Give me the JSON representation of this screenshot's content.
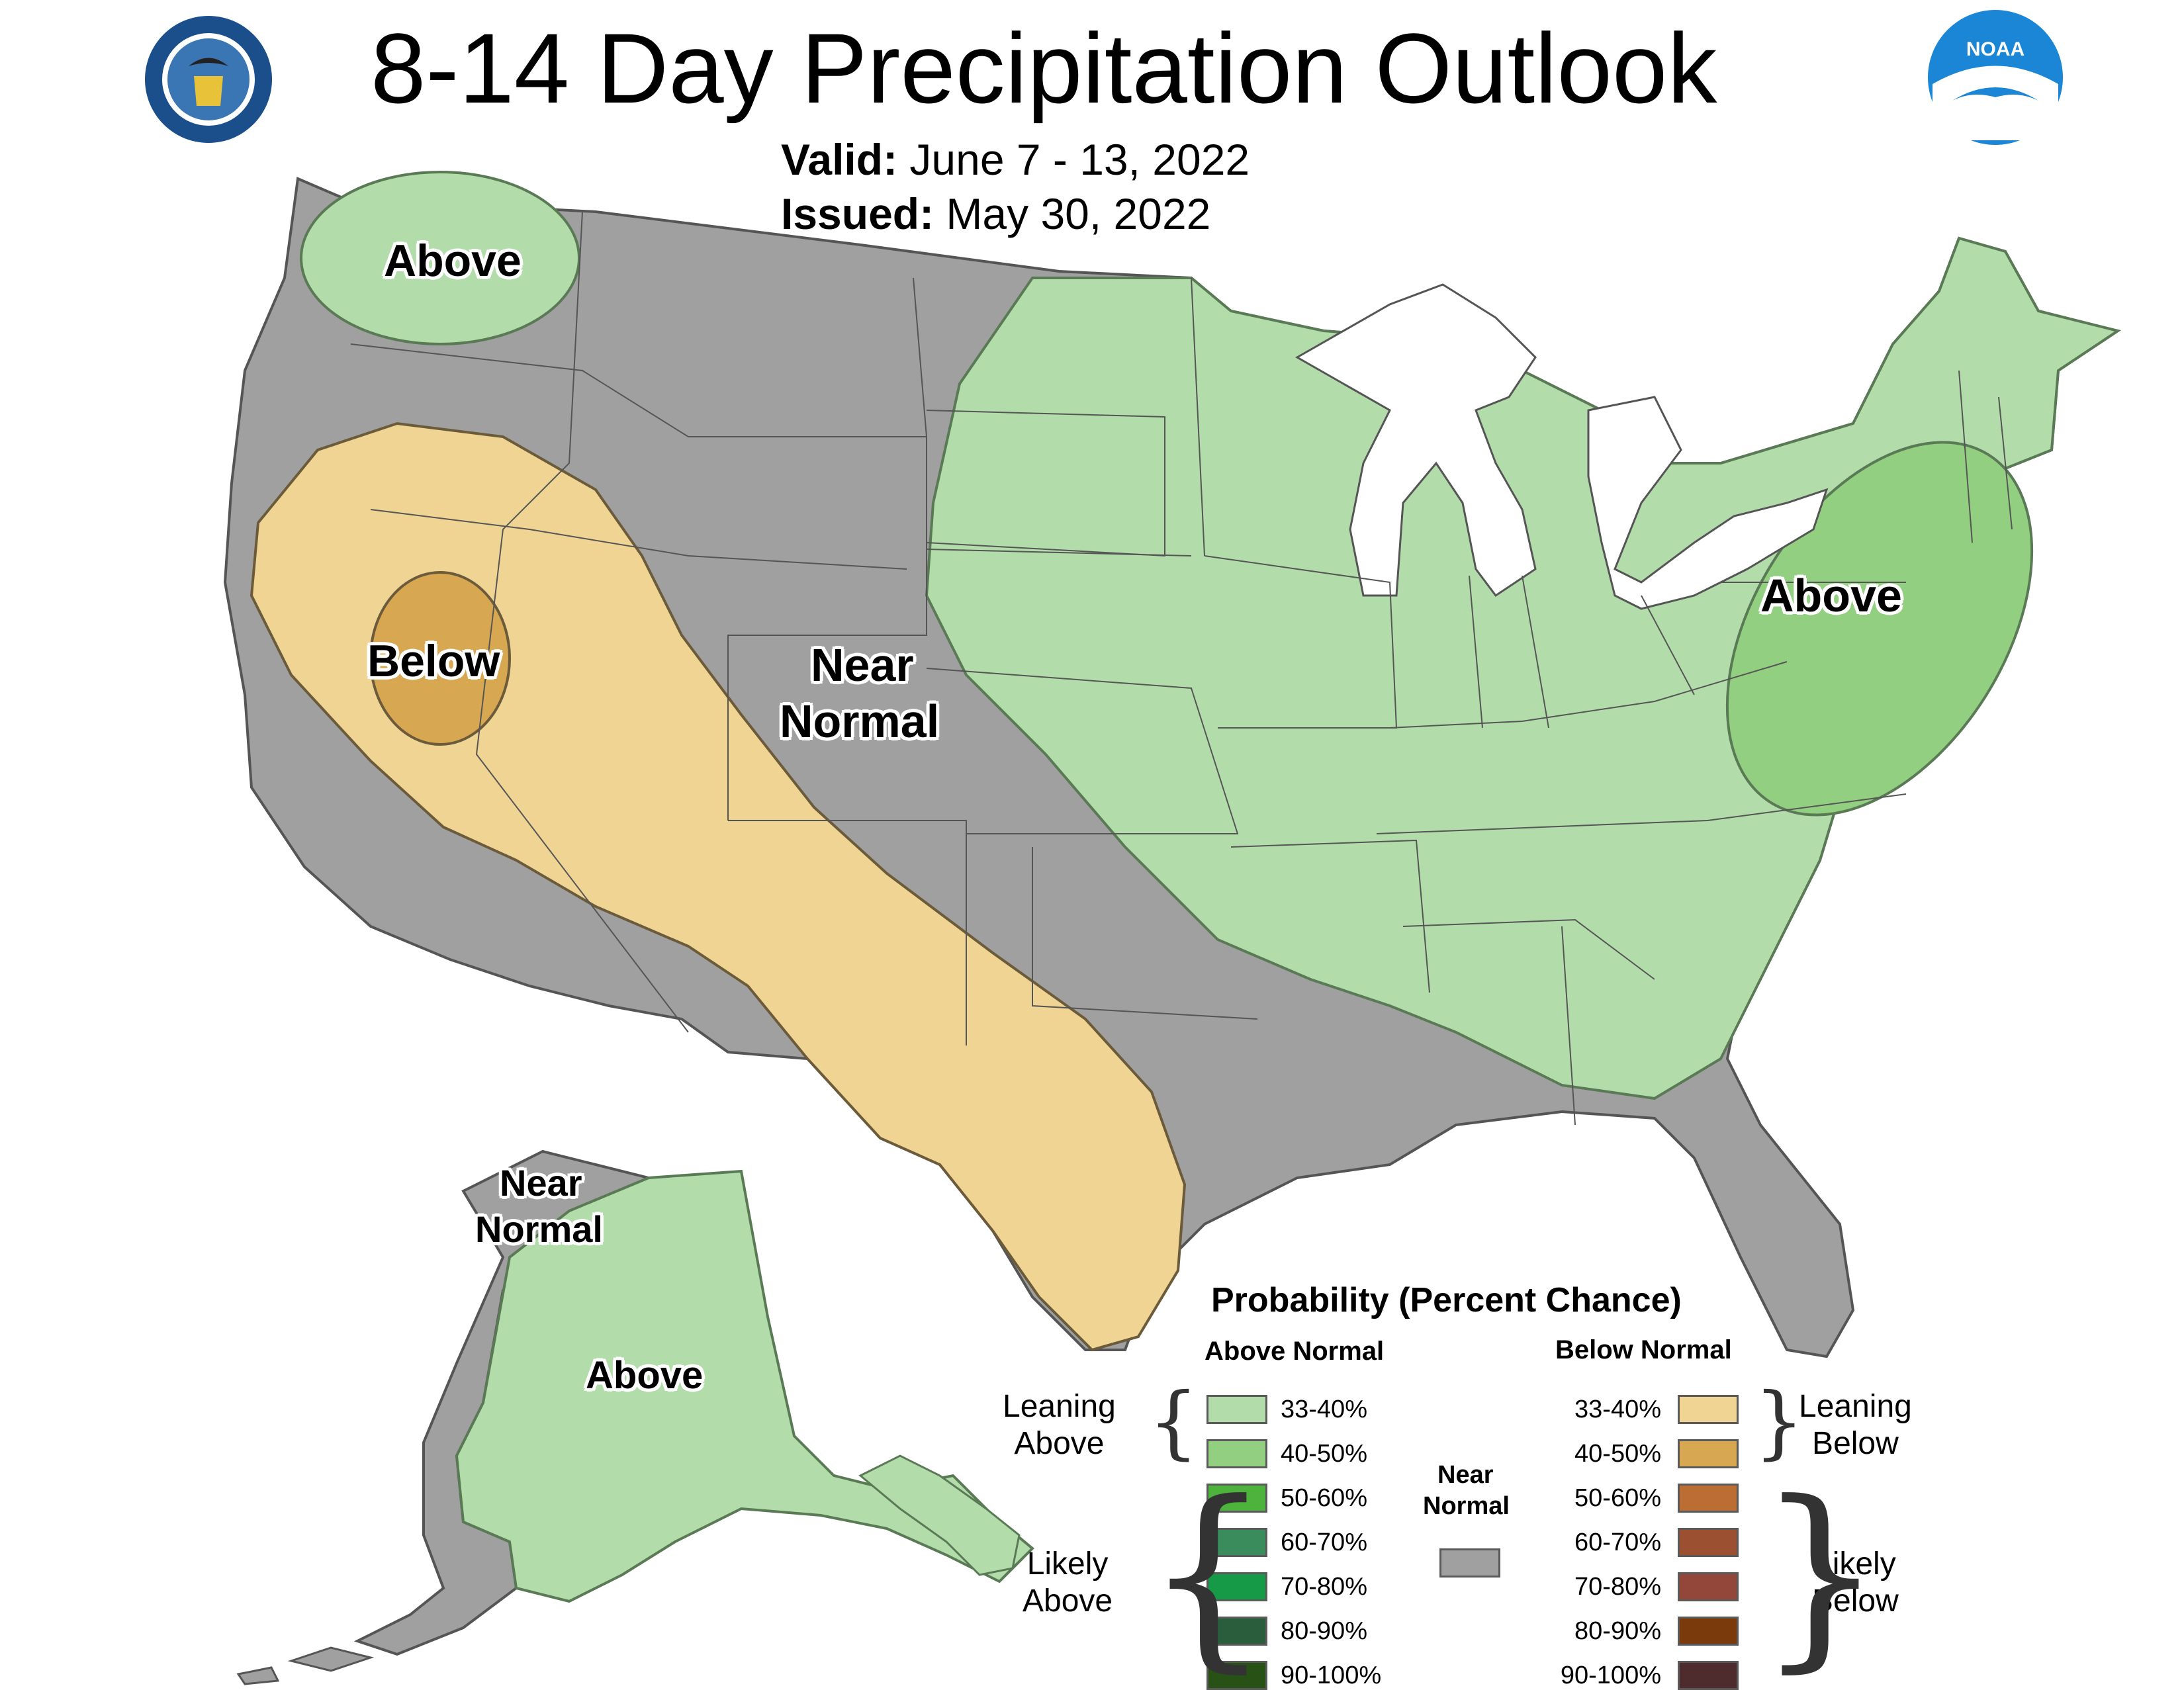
{
  "header": {
    "title": "8-14 Day Precipitation Outlook",
    "valid_label": "Valid:",
    "valid_value": "June 7 - 13, 2022",
    "issued_label": "Issued:",
    "issued_value": "May 30, 2022"
  },
  "logos": {
    "left": "department-of-commerce-seal",
    "right": "noaa-logo",
    "noaa_text": "NOAA"
  },
  "map_labels": {
    "nw_above": "Above",
    "west_below": "Below",
    "central_near": "Near",
    "central_normal": "Normal",
    "east_above": "Above",
    "ak_near": "Near",
    "ak_normal": "Normal",
    "ak_above": "Above"
  },
  "legend": {
    "title": "Probability (Percent Chance)",
    "above_heading": "Above Normal",
    "below_heading": "Below Normal",
    "near_heading_1": "Near",
    "near_heading_2": "Normal",
    "leaning_above_1": "Leaning",
    "leaning_above_2": "Above",
    "likely_above_1": "Likely",
    "likely_above_2": "Above",
    "leaning_below_1": "Leaning",
    "leaning_below_2": "Below",
    "likely_below_1": "Likely",
    "likely_below_2": "Below",
    "above_items": [
      {
        "label": "33-40%",
        "color": "#b3dcab"
      },
      {
        "label": "40-50%",
        "color": "#93cf81"
      },
      {
        "label": "50-60%",
        "color": "#4eb33d"
      },
      {
        "label": "60-70%",
        "color": "#3a8c5d"
      },
      {
        "label": "70-80%",
        "color": "#179a48"
      },
      {
        "label": "80-90%",
        "color": "#295d3c"
      },
      {
        "label": "90-100%",
        "color": "#285215"
      }
    ],
    "below_items": [
      {
        "label": "33-40%",
        "color": "#f0d493"
      },
      {
        "label": "40-50%",
        "color": "#d8a751"
      },
      {
        "label": "50-60%",
        "color": "#bb6d33"
      },
      {
        "label": "60-70%",
        "color": "#9b5031"
      },
      {
        "label": "70-80%",
        "color": "#93473a"
      },
      {
        "label": "80-90%",
        "color": "#7b3a0c"
      },
      {
        "label": "90-100%",
        "color": "#4e2b2c"
      }
    ],
    "near_color": "#a0a0a0"
  },
  "colors": {
    "near_normal": "#a0a0a0",
    "leaning_above": "#b3dcab",
    "above_40": "#93cf81",
    "leaning_below": "#f0d493",
    "below_40": "#d8a751",
    "lakes": "#ffffff"
  }
}
